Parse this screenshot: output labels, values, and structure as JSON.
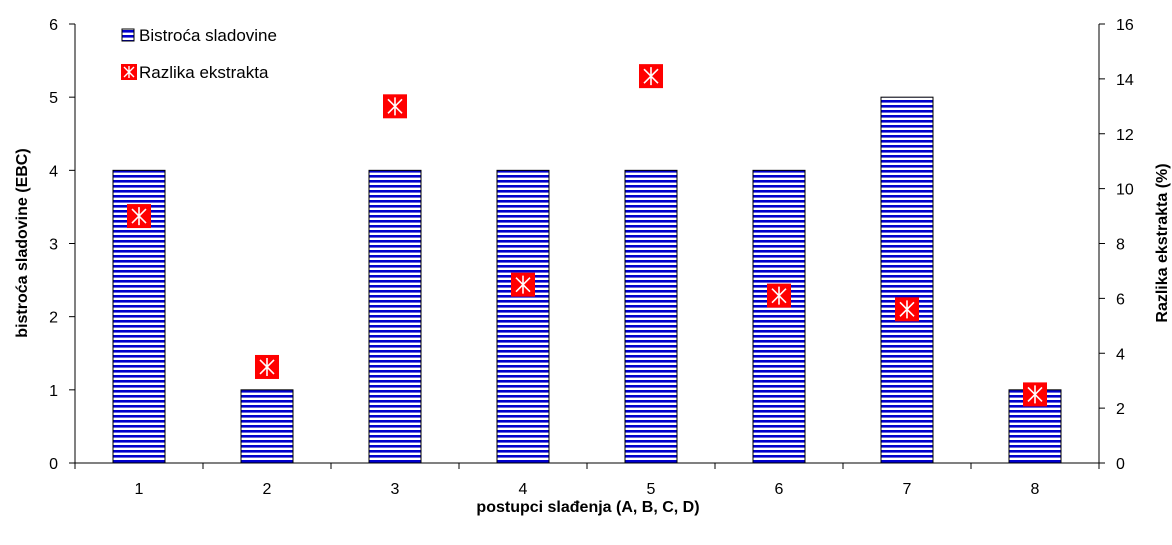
{
  "chart_data": {
    "type": "bar",
    "xlabel": "postupci slađenja (A, B, C, D)",
    "ylabel": "bistroća sladovine (EBC)",
    "y2label": "Razlika ekstrakta (%)",
    "categories": [
      "1",
      "2",
      "3",
      "4",
      "5",
      "6",
      "7",
      "8"
    ],
    "ylim": [
      0,
      6
    ],
    "y2lim": [
      0,
      16
    ],
    "yticks": [
      "0",
      "1",
      "2",
      "3",
      "4",
      "5",
      "6"
    ],
    "y2ticks": [
      "0",
      "2",
      "4",
      "6",
      "8",
      "10",
      "12",
      "14",
      "16"
    ],
    "legend_position": "top-left",
    "series": [
      {
        "name": "Bistroća sladovine",
        "kind": "bar",
        "axis": "left",
        "color": "#0000cc",
        "values": [
          4,
          1,
          4,
          4,
          4,
          4,
          5,
          1
        ]
      },
      {
        "name": "Razlika ekstrakta",
        "kind": "scatter",
        "axis": "right",
        "color": "#ff0000",
        "values": [
          9.0,
          3.5,
          13.0,
          6.5,
          14.1,
          6.1,
          5.6,
          2.5
        ]
      }
    ]
  }
}
